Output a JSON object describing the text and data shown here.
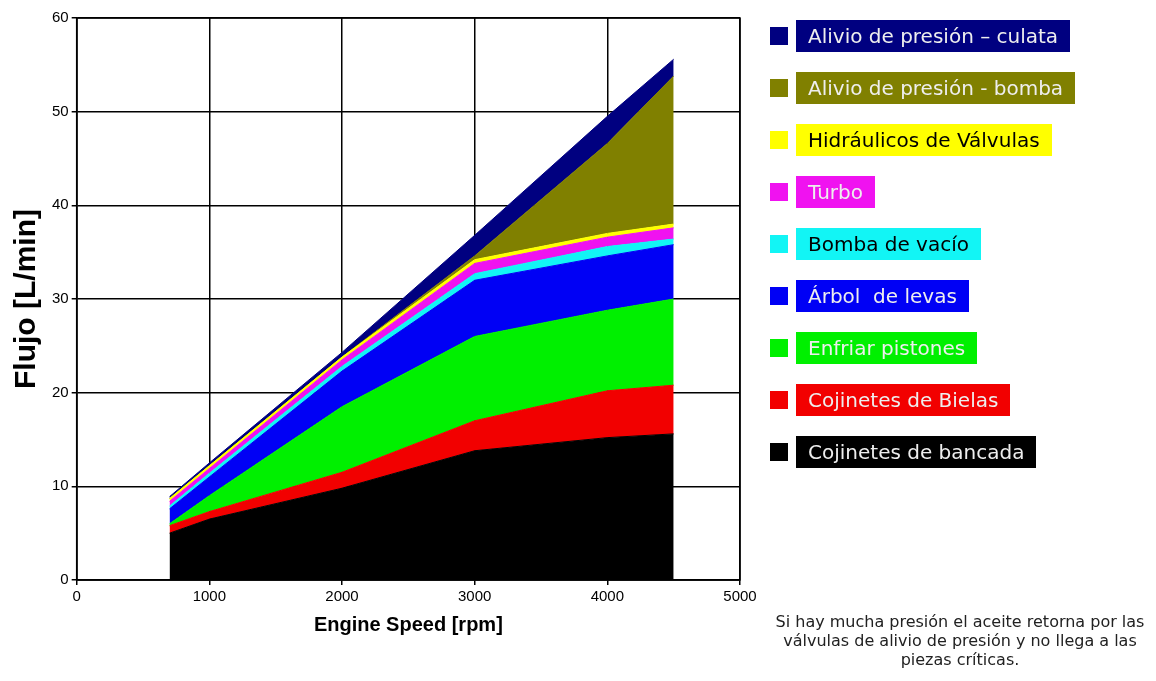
{
  "chart_data": {
    "type": "area",
    "stacked": true,
    "xlabel": "Engine Speed [rpm]",
    "ylabel": "Flujo [L/min]",
    "x": [
      700,
      1000,
      2000,
      3000,
      4000,
      4500
    ],
    "xlim": [
      0,
      5000
    ],
    "xticks": [
      0,
      1000,
      2000,
      3000,
      4000,
      5000
    ],
    "ylim": [
      0,
      60
    ],
    "yticks": [
      0,
      10,
      20,
      30,
      40,
      50,
      60
    ],
    "grid": true,
    "legend": "right",
    "marker": "none",
    "series": [
      {
        "name": "Cojinetes de bancada",
        "color": "#000000",
        "values": [
          5,
          6.5,
          9.8,
          13.8,
          15.2,
          15.6
        ]
      },
      {
        "name": "Cojinetes de Bielas",
        "color": "#f20000",
        "values": [
          0.8,
          0.8,
          1.7,
          3.2,
          5.0,
          5.2
        ]
      },
      {
        "name": "Enfriar pistones",
        "color": "#00f000",
        "values": [
          0.2,
          1.7,
          7.0,
          9.0,
          8.6,
          9.2
        ]
      },
      {
        "name": "Árbol  de levas",
        "color": "#0000f5",
        "values": [
          1.6,
          2.0,
          3.8,
          6.0,
          5.8,
          5.8
        ]
      },
      {
        "name": "Bomba de vacío",
        "color": "#12f5f5",
        "values": [
          0.3,
          0.4,
          0.5,
          0.7,
          1.0,
          0.6
        ]
      },
      {
        "name": "Turbo",
        "color": "#f012f0",
        "values": [
          0.5,
          0.5,
          0.7,
          1.1,
          1.0,
          1.2
        ]
      },
      {
        "name": "Hidráulicos de Válvulas",
        "color": "#ffff00",
        "values": [
          0.3,
          0.3,
          0.3,
          0.4,
          0.4,
          0.4
        ]
      },
      {
        "name": "Alivio de presión - bomba",
        "color": "#808000",
        "values": [
          0,
          0,
          0,
          0.4,
          9.6,
          15.8
        ]
      },
      {
        "name": "Alivio de presión – culata",
        "color": "#000080",
        "values": [
          0.2,
          0.3,
          0.5,
          2.2,
          2.9,
          1.8
        ]
      }
    ],
    "annotations": [
      "Si hay mucha presión el aceite retorna por las válvulas de alivio de presión y no llega a las piezas críticas."
    ]
  }
}
